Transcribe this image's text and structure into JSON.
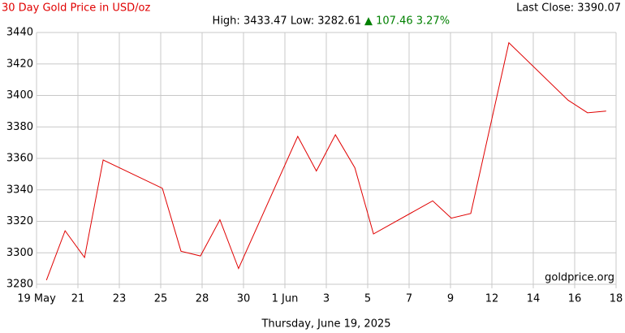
{
  "chart_data": {
    "type": "line",
    "title": "30 Day Gold Price in USD/oz",
    "stats": {
      "high_low": "High: 3433.47 Low: 3282.61",
      "change": "▲ 107.46 3.27%"
    },
    "last_close": "Last Close: 3390.07",
    "watermark": "goldprice.org",
    "date_label": "Thursday, June 19, 2025",
    "x": [
      0.24,
      0.69,
      1.16,
      1.61,
      3.04,
      3.49,
      3.96,
      4.43,
      4.88,
      6.31,
      6.76,
      7.22,
      7.69,
      8.14,
      9.57,
      10.02,
      10.49,
      11.41,
      12.84,
      13.31,
      13.76
    ],
    "series": [
      {
        "name": "Gold",
        "color": "#e00000",
        "values": [
          3282.61,
          3314,
          3297,
          3359,
          3341,
          3301,
          3298,
          3321,
          3290,
          3374,
          3352,
          3375,
          3354,
          3312,
          3333,
          3322,
          3325,
          3433.47,
          3397,
          3389,
          3390.07
        ]
      }
    ],
    "xlim": [
      0,
      14
    ],
    "xticks": [
      {
        "value": 0,
        "label": "19 May"
      },
      {
        "value": 1,
        "label": "21"
      },
      {
        "value": 2,
        "label": "23"
      },
      {
        "value": 3,
        "label": "25"
      },
      {
        "value": 4,
        "label": "28"
      },
      {
        "value": 5,
        "label": "30"
      },
      {
        "value": 6,
        "label": "1 Jun"
      },
      {
        "value": 7,
        "label": "3"
      },
      {
        "value": 8,
        "label": "5"
      },
      {
        "value": 9,
        "label": "7"
      },
      {
        "value": 10,
        "label": "9"
      },
      {
        "value": 11,
        "label": "12"
      },
      {
        "value": 12,
        "label": "14"
      },
      {
        "value": 13,
        "label": "16"
      },
      {
        "value": 14,
        "label": "18"
      }
    ],
    "ylim": [
      3280,
      3440
    ],
    "yticks": [
      3280,
      3300,
      3320,
      3340,
      3360,
      3380,
      3400,
      3420,
      3440
    ],
    "grid": true
  }
}
